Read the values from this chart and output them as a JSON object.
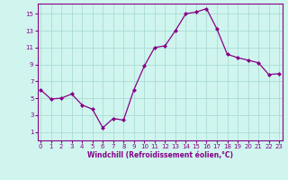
{
  "x": [
    0,
    1,
    2,
    3,
    4,
    5,
    6,
    7,
    8,
    9,
    10,
    11,
    12,
    13,
    14,
    15,
    16,
    17,
    18,
    19,
    20,
    21,
    22,
    23
  ],
  "y": [
    6.0,
    4.9,
    5.0,
    5.5,
    4.2,
    3.7,
    1.5,
    2.6,
    2.4,
    6.0,
    8.8,
    11.0,
    11.2,
    13.0,
    15.0,
    15.2,
    15.6,
    13.2,
    10.2,
    9.8,
    9.5,
    9.2,
    7.8,
    7.9
  ],
  "line_color": "#880088",
  "marker": "D",
  "marker_size": 2.0,
  "bg_color": "#cff5ee",
  "grid_color": "#aaddd5",
  "xlabel": "Windchill (Refroidissement éolien,°C)",
  "ylabel_ticks": [
    1,
    3,
    5,
    7,
    9,
    11,
    13,
    15
  ],
  "xticks": [
    0,
    1,
    2,
    3,
    4,
    5,
    6,
    7,
    8,
    9,
    10,
    11,
    12,
    13,
    14,
    15,
    16,
    17,
    18,
    19,
    20,
    21,
    22,
    23
  ],
  "ylim": [
    0.0,
    16.2
  ],
  "xlim": [
    -0.3,
    23.3
  ],
  "tick_label_color": "#880088",
  "xlabel_color": "#880088",
  "tick_fontsize": 5.0,
  "xlabel_fontsize": 5.5,
  "linewidth": 0.9,
  "spine_color": "#880088"
}
